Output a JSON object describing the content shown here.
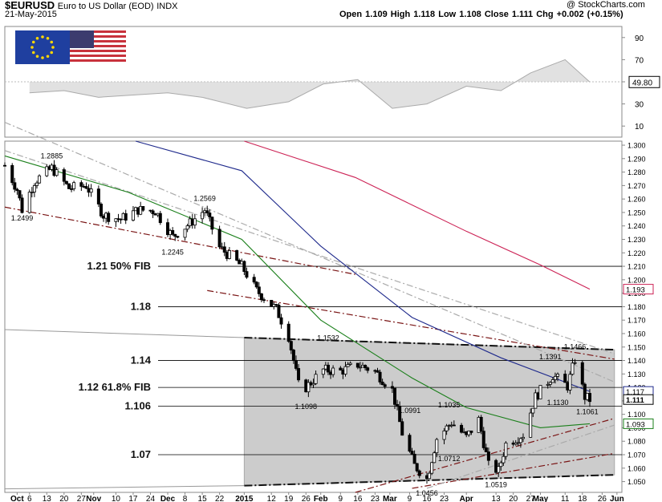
{
  "header": {
    "symbol": "$EURUSD",
    "name": "Euro to US Dollar (EOD)",
    "exchange": "INDX",
    "date": "21-May-2015",
    "watermark": "@ StockCharts.com",
    "quote": "Open 1.109  High 1.118  Low 1.108  Close 1.111  Chg +0.002 (+0.15%)"
  },
  "colors": {
    "price_bar": "#000000",
    "rsi_line": "#aaaaaa",
    "rsi_fill": "#c8c8c8",
    "ma_green": "#1a7f1a",
    "ma_blue": "#1f2a8c",
    "ma_red": "#cc2255",
    "trend_dark_red": "#7a1515",
    "channel_box": "#cccccc",
    "channel_edge": "#111111",
    "label_fill": "#ffffff"
  },
  "flag_icon": "eu-us-flags",
  "chart_data": [
    {
      "type": "line",
      "panel": "rsi",
      "y_ticks": [
        10,
        30,
        50,
        70,
        90
      ],
      "ylim": [
        0,
        100
      ],
      "last_value_label": "49.80",
      "x": [
        "2014-10-06",
        "2014-10-20",
        "2014-11-03",
        "2014-11-17",
        "2014-12-01",
        "2014-12-15",
        "2015-01-02",
        "2015-01-19",
        "2015-02-02",
        "2015-02-16",
        "2015-03-02",
        "2015-03-16",
        "2015-04-01",
        "2015-04-15",
        "2015-04-27",
        "2015-05-11",
        "2015-05-21"
      ],
      "values": [
        40,
        42,
        36,
        38,
        40,
        36,
        26,
        32,
        48,
        52,
        26,
        30,
        46,
        42,
        58,
        70,
        49.8
      ]
    },
    {
      "type": "candlestick",
      "panel": "price",
      "ylim": [
        1.042,
        1.303
      ],
      "y_ticks": [
        1.05,
        1.06,
        1.07,
        1.08,
        1.09,
        1.1,
        1.11,
        1.12,
        1.13,
        1.14,
        1.15,
        1.16,
        1.17,
        1.18,
        1.19,
        1.2,
        1.21,
        1.22,
        1.23,
        1.24,
        1.25,
        1.26,
        1.27,
        1.28,
        1.29,
        1.3
      ],
      "x_labels": [
        "Oct",
        "6",
        "13",
        "20",
        "27",
        "Nov",
        "10",
        "17",
        "24",
        "Dec",
        "8",
        "15",
        "22",
        "2015",
        "12",
        "19",
        "26",
        "Feb",
        "9",
        "16",
        "23",
        "Mar",
        "9",
        "16",
        "23",
        "Apr",
        "13",
        "20",
        "27",
        "May",
        "11",
        "18",
        "26",
        "Jun"
      ],
      "x_label_dates": [
        "2014-10-01",
        "2014-10-06",
        "2014-10-13",
        "2014-10-20",
        "2014-10-27",
        "2014-11-01",
        "2014-11-10",
        "2014-11-17",
        "2014-11-24",
        "2014-12-01",
        "2014-12-08",
        "2014-12-15",
        "2014-12-22",
        "2015-01-01",
        "2015-01-12",
        "2015-01-19",
        "2015-01-26",
        "2015-02-01",
        "2015-02-09",
        "2015-02-16",
        "2015-02-23",
        "2015-03-01",
        "2015-03-09",
        "2015-03-16",
        "2015-03-23",
        "2015-04-01",
        "2015-04-13",
        "2015-04-20",
        "2015-04-27",
        "2015-05-01",
        "2015-05-11",
        "2015-05-18",
        "2015-05-26",
        "2015-06-01"
      ],
      "price_path": [
        [
          "2014-09-26",
          1.285
        ],
        [
          "2014-10-01",
          1.267
        ],
        [
          "2014-10-03",
          1.252
        ],
        [
          "2014-10-08",
          1.273
        ],
        [
          "2014-10-15",
          1.283
        ],
        [
          "2014-10-22",
          1.268
        ],
        [
          "2014-10-29",
          1.27
        ],
        [
          "2014-11-05",
          1.248
        ],
        [
          "2014-11-12",
          1.245
        ],
        [
          "2014-11-19",
          1.252
        ],
        [
          "2014-11-26",
          1.251
        ],
        [
          "2014-12-03",
          1.232
        ],
        [
          "2014-12-10",
          1.242
        ],
        [
          "2014-12-16",
          1.252
        ],
        [
          "2014-12-22",
          1.224
        ],
        [
          "2014-12-31",
          1.21
        ],
        [
          "2015-01-06",
          1.192
        ],
        [
          "2015-01-14",
          1.178
        ],
        [
          "2015-01-19",
          1.158
        ],
        [
          "2015-01-23",
          1.122
        ],
        [
          "2015-01-26",
          1.12
        ],
        [
          "2015-02-02",
          1.133
        ],
        [
          "2015-02-09",
          1.132
        ],
        [
          "2015-02-16",
          1.137
        ],
        [
          "2015-02-23",
          1.132
        ],
        [
          "2015-03-02",
          1.118
        ],
        [
          "2015-03-06",
          1.086
        ],
        [
          "2015-03-11",
          1.062
        ],
        [
          "2015-03-16",
          1.052
        ],
        [
          "2015-03-20",
          1.082
        ],
        [
          "2015-03-26",
          1.094
        ],
        [
          "2015-04-01",
          1.083
        ],
        [
          "2015-04-06",
          1.096
        ],
        [
          "2015-04-10",
          1.062
        ],
        [
          "2015-04-14",
          1.058
        ],
        [
          "2015-04-17",
          1.078
        ],
        [
          "2015-04-24",
          1.085
        ],
        [
          "2015-04-29",
          1.113
        ],
        [
          "2015-05-06",
          1.129
        ],
        [
          "2015-05-12",
          1.121
        ],
        [
          "2015-05-15",
          1.141
        ],
        [
          "2015-05-19",
          1.113
        ],
        [
          "2015-05-21",
          1.111
        ]
      ],
      "annotations": [
        {
          "text": "1.2885",
          "date": "2014-10-15",
          "price": 1.2885
        },
        {
          "text": "1.2499",
          "date": "2014-10-03",
          "price": 1.2499
        },
        {
          "text": "1.2569",
          "date": "2014-12-16",
          "price": 1.2569
        },
        {
          "text": "1.2245",
          "date": "2014-12-03",
          "price": 1.2245
        },
        {
          "text": "1.1532",
          "date": "2015-02-04",
          "price": 1.1532
        },
        {
          "text": "1.1098",
          "date": "2015-01-26",
          "price": 1.1098
        },
        {
          "text": "1.0991",
          "date": "2015-03-09",
          "price": 1.0991
        },
        {
          "text": "1.1035",
          "date": "2015-03-25",
          "price": 1.1035
        },
        {
          "text": "1.0712",
          "date": "2015-03-25",
          "price": 1.0712
        },
        {
          "text": "1.0456",
          "date": "2015-03-16",
          "price": 1.0456
        },
        {
          "text": "1.0519",
          "date": "2015-04-13",
          "price": 1.0519
        },
        {
          "text": "1.1391",
          "date": "2015-05-05",
          "price": 1.1391
        },
        {
          "text": "1.1466",
          "date": "2015-05-15",
          "price": 1.1466
        },
        {
          "text": "1.1130",
          "date": "2015-05-08",
          "price": 1.113
        },
        {
          "text": "1.1061",
          "date": "2015-05-20",
          "price": 1.1061
        }
      ],
      "horizontal_levels": [
        {
          "label": "1.21  50% FIB",
          "price": 1.21
        },
        {
          "label": "1.18",
          "price": 1.18
        },
        {
          "label": "1.14",
          "price": 1.14
        },
        {
          "label": "1.12  61.8% FIB",
          "price": 1.12
        },
        {
          "label": "1.106",
          "price": 1.106
        },
        {
          "label": "1.07",
          "price": 1.07
        }
      ],
      "price_labels": [
        {
          "text": "1.193",
          "price": 1.193,
          "color": "#cc2255"
        },
        {
          "text": "1.117",
          "price": 1.117,
          "color": "#1f2a8c"
        },
        {
          "text": "1.111",
          "price": 1.111,
          "color": "#000000"
        },
        {
          "text": "1.093",
          "price": 1.093,
          "color": "#1a7f1a"
        }
      ],
      "channel_box": {
        "start": "2015-01-01",
        "end": "2015-05-31",
        "top_left": 1.157,
        "top_right": 1.148,
        "bottom_left": 1.047,
        "bottom_right": 1.055
      },
      "moving_averages": [
        {
          "color_key": "ma_green",
          "points": [
            [
              "2014-09-26",
              1.292
            ],
            [
              "2014-11-15",
              1.265
            ],
            [
              "2014-12-31",
              1.23
            ],
            [
              "2015-02-01",
              1.17
            ],
            [
              "2015-03-10",
              1.127
            ],
            [
              "2015-04-01",
              1.105
            ],
            [
              "2015-05-01",
              1.09
            ],
            [
              "2015-05-21",
              1.093
            ]
          ]
        },
        {
          "color_key": "ma_blue",
          "points": [
            [
              "2014-11-18",
              1.303
            ],
            [
              "2014-12-31",
              1.281
            ],
            [
              "2015-02-01",
              1.225
            ],
            [
              "2015-03-10",
              1.172
            ],
            [
              "2015-04-15",
              1.142
            ],
            [
              "2015-05-21",
              1.117
            ]
          ]
        },
        {
          "color_key": "ma_red",
          "points": [
            [
              "2015-01-01",
              1.303
            ],
            [
              "2015-02-15",
              1.276
            ],
            [
              "2015-04-01",
              1.236
            ],
            [
              "2015-05-01",
              1.211
            ],
            [
              "2015-05-21",
              1.193
            ]
          ]
        }
      ],
      "trend_lines": [
        {
          "style": "dashdot",
          "color_key": "trend_dark_red",
          "from": [
            "2014-09-26",
            1.254
          ],
          "to": [
            "2015-02-15",
            1.204
          ]
        },
        {
          "style": "dashdot",
          "color_key": "trend_dark_red",
          "from": [
            "2014-12-17",
            1.192
          ],
          "to": [
            "2015-05-31",
            1.141
          ]
        },
        {
          "style": "dashdot",
          "color_key": "rsi_line",
          "from": [
            "2014-09-26",
            1.296
          ],
          "to": [
            "2015-05-31",
            1.145
          ]
        },
        {
          "style": "dashdot",
          "color_key": "rsi_line",
          "from": [
            "2014-09-26",
            1.317
          ],
          "to": [
            "2015-05-31",
            1.124
          ]
        },
        {
          "style": "dashdot",
          "color_key": "trend_dark_red",
          "from": [
            "2015-02-15",
            1.042
          ],
          "to": [
            "2015-05-31",
            1.097
          ]
        },
        {
          "style": "dashdot",
          "color_key": "trend_dark_red",
          "from": [
            "2015-03-10",
            1.045
          ],
          "to": [
            "2015-05-31",
            1.071
          ]
        },
        {
          "style": "dashdot",
          "color_key": "rsi_line",
          "from": [
            "2015-03-16",
            1.045
          ],
          "to": [
            "2015-05-31",
            1.092
          ]
        }
      ]
    }
  ]
}
